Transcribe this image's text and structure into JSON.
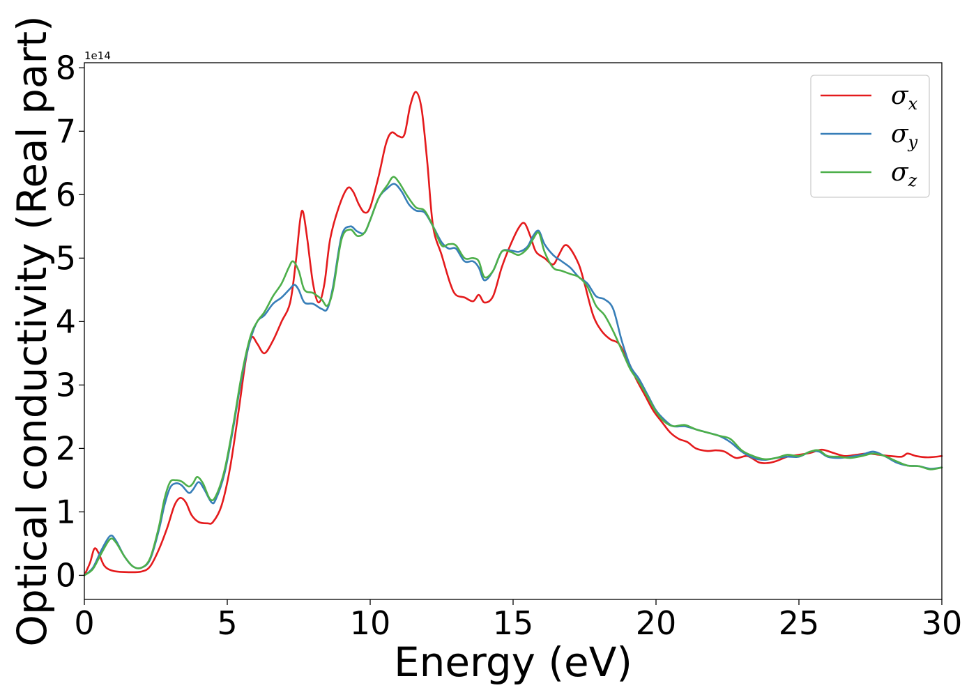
{
  "chart_data": {
    "type": "line",
    "xlabel": "Energy (eV)",
    "ylabel": "Optical conductivity (Real part)",
    "y_offset_label": "1e14",
    "xlim": [
      0,
      30
    ],
    "ylim": [
      -0.38,
      8.08
    ],
    "x_ticks": [
      0,
      5,
      10,
      15,
      20,
      25,
      30
    ],
    "x_tick_labels": [
      "0",
      "5",
      "10",
      "15",
      "20",
      "25",
      "30"
    ],
    "y_ticks": [
      0,
      1,
      2,
      3,
      4,
      5,
      6,
      7,
      8
    ],
    "y_tick_labels": [
      "0",
      "1",
      "2",
      "3",
      "4",
      "5",
      "6",
      "7",
      "8"
    ],
    "grid": false,
    "legend_position": "top-right",
    "series": [
      {
        "name": "σx",
        "symbol": "σ",
        "subscript": "x",
        "color": "#e41a1c",
        "points": [
          [
            0,
            0
          ],
          [
            0.2,
            0.2
          ],
          [
            0.35,
            0.42
          ],
          [
            0.5,
            0.35
          ],
          [
            0.7,
            0.15
          ],
          [
            1.0,
            0.07
          ],
          [
            1.5,
            0.05
          ],
          [
            2.0,
            0.06
          ],
          [
            2.3,
            0.14
          ],
          [
            2.6,
            0.4
          ],
          [
            2.9,
            0.75
          ],
          [
            3.15,
            1.1
          ],
          [
            3.35,
            1.22
          ],
          [
            3.55,
            1.15
          ],
          [
            3.75,
            0.95
          ],
          [
            4.0,
            0.84
          ],
          [
            4.3,
            0.82
          ],
          [
            4.5,
            0.84
          ],
          [
            4.8,
            1.1
          ],
          [
            5.1,
            1.7
          ],
          [
            5.4,
            2.6
          ],
          [
            5.65,
            3.4
          ],
          [
            5.85,
            3.75
          ],
          [
            6.05,
            3.65
          ],
          [
            6.3,
            3.5
          ],
          [
            6.6,
            3.7
          ],
          [
            6.9,
            4.0
          ],
          [
            7.2,
            4.3
          ],
          [
            7.4,
            4.95
          ],
          [
            7.55,
            5.6
          ],
          [
            7.65,
            5.73
          ],
          [
            7.8,
            5.3
          ],
          [
            8.0,
            4.6
          ],
          [
            8.2,
            4.3
          ],
          [
            8.4,
            4.6
          ],
          [
            8.6,
            5.3
          ],
          [
            8.9,
            5.8
          ],
          [
            9.2,
            6.1
          ],
          [
            9.4,
            6.05
          ],
          [
            9.6,
            5.85
          ],
          [
            9.8,
            5.72
          ],
          [
            10.0,
            5.8
          ],
          [
            10.3,
            6.3
          ],
          [
            10.55,
            6.8
          ],
          [
            10.75,
            6.98
          ],
          [
            11.0,
            6.92
          ],
          [
            11.2,
            6.95
          ],
          [
            11.4,
            7.4
          ],
          [
            11.6,
            7.62
          ],
          [
            11.8,
            7.35
          ],
          [
            12.0,
            6.5
          ],
          [
            12.2,
            5.5
          ],
          [
            12.5,
            5.05
          ],
          [
            12.8,
            4.6
          ],
          [
            13.0,
            4.42
          ],
          [
            13.3,
            4.38
          ],
          [
            13.6,
            4.32
          ],
          [
            13.8,
            4.42
          ],
          [
            14.0,
            4.3
          ],
          [
            14.3,
            4.4
          ],
          [
            14.6,
            4.85
          ],
          [
            14.9,
            5.2
          ],
          [
            15.2,
            5.48
          ],
          [
            15.4,
            5.55
          ],
          [
            15.6,
            5.35
          ],
          [
            15.8,
            5.1
          ],
          [
            16.1,
            5.0
          ],
          [
            16.4,
            4.9
          ],
          [
            16.6,
            5.05
          ],
          [
            16.8,
            5.2
          ],
          [
            17.0,
            5.15
          ],
          [
            17.3,
            4.9
          ],
          [
            17.5,
            4.6
          ],
          [
            17.8,
            4.1
          ],
          [
            18.1,
            3.85
          ],
          [
            18.4,
            3.72
          ],
          [
            18.7,
            3.65
          ],
          [
            19.0,
            3.4
          ],
          [
            19.3,
            3.1
          ],
          [
            19.6,
            2.85
          ],
          [
            19.9,
            2.6
          ],
          [
            20.2,
            2.42
          ],
          [
            20.5,
            2.25
          ],
          [
            20.8,
            2.15
          ],
          [
            21.1,
            2.1
          ],
          [
            21.4,
            2.0
          ],
          [
            21.8,
            1.96
          ],
          [
            22.1,
            1.97
          ],
          [
            22.4,
            1.95
          ],
          [
            22.8,
            1.85
          ],
          [
            23.2,
            1.88
          ],
          [
            23.6,
            1.78
          ],
          [
            23.9,
            1.77
          ],
          [
            24.2,
            1.8
          ],
          [
            24.6,
            1.87
          ],
          [
            25.0,
            1.9
          ],
          [
            25.4,
            1.93
          ],
          [
            25.8,
            1.98
          ],
          [
            26.2,
            1.93
          ],
          [
            26.6,
            1.88
          ],
          [
            27.0,
            1.9
          ],
          [
            27.4,
            1.92
          ],
          [
            27.8,
            1.9
          ],
          [
            28.2,
            1.88
          ],
          [
            28.6,
            1.87
          ],
          [
            28.8,
            1.92
          ],
          [
            29.1,
            1.88
          ],
          [
            29.5,
            1.86
          ],
          [
            30.0,
            1.88
          ]
        ]
      },
      {
        "name": "σy",
        "symbol": "σ",
        "subscript": "y",
        "color": "#377eb8",
        "points": [
          [
            0,
            0
          ],
          [
            0.3,
            0.12
          ],
          [
            0.6,
            0.4
          ],
          [
            0.9,
            0.62
          ],
          [
            1.1,
            0.55
          ],
          [
            1.4,
            0.3
          ],
          [
            1.7,
            0.14
          ],
          [
            2.0,
            0.12
          ],
          [
            2.3,
            0.25
          ],
          [
            2.6,
            0.7
          ],
          [
            2.8,
            1.1
          ],
          [
            3.0,
            1.38
          ],
          [
            3.2,
            1.45
          ],
          [
            3.4,
            1.42
          ],
          [
            3.65,
            1.3
          ],
          [
            3.8,
            1.35
          ],
          [
            4.0,
            1.47
          ],
          [
            4.2,
            1.35
          ],
          [
            4.45,
            1.15
          ],
          [
            4.6,
            1.2
          ],
          [
            4.9,
            1.6
          ],
          [
            5.2,
            2.3
          ],
          [
            5.5,
            3.1
          ],
          [
            5.8,
            3.7
          ],
          [
            6.05,
            4.0
          ],
          [
            6.3,
            4.1
          ],
          [
            6.6,
            4.28
          ],
          [
            6.9,
            4.38
          ],
          [
            7.2,
            4.52
          ],
          [
            7.35,
            4.58
          ],
          [
            7.5,
            4.5
          ],
          [
            7.7,
            4.3
          ],
          [
            8.0,
            4.28
          ],
          [
            8.3,
            4.2
          ],
          [
            8.5,
            4.2
          ],
          [
            8.7,
            4.55
          ],
          [
            9.0,
            5.35
          ],
          [
            9.3,
            5.5
          ],
          [
            9.55,
            5.42
          ],
          [
            9.8,
            5.4
          ],
          [
            10.0,
            5.6
          ],
          [
            10.3,
            5.95
          ],
          [
            10.6,
            6.1
          ],
          [
            10.85,
            6.17
          ],
          [
            11.1,
            6.05
          ],
          [
            11.35,
            5.85
          ],
          [
            11.6,
            5.75
          ],
          [
            11.9,
            5.72
          ],
          [
            12.2,
            5.5
          ],
          [
            12.5,
            5.25
          ],
          [
            12.75,
            5.15
          ],
          [
            13.0,
            5.15
          ],
          [
            13.3,
            4.95
          ],
          [
            13.6,
            4.95
          ],
          [
            13.8,
            4.85
          ],
          [
            14.0,
            4.65
          ],
          [
            14.3,
            4.8
          ],
          [
            14.6,
            5.1
          ],
          [
            14.9,
            5.12
          ],
          [
            15.2,
            5.1
          ],
          [
            15.5,
            5.18
          ],
          [
            15.7,
            5.35
          ],
          [
            15.9,
            5.43
          ],
          [
            16.1,
            5.22
          ],
          [
            16.4,
            5.05
          ],
          [
            16.7,
            4.95
          ],
          [
            17.0,
            4.85
          ],
          [
            17.3,
            4.7
          ],
          [
            17.6,
            4.6
          ],
          [
            17.9,
            4.4
          ],
          [
            18.2,
            4.35
          ],
          [
            18.5,
            4.2
          ],
          [
            18.8,
            3.7
          ],
          [
            19.1,
            3.3
          ],
          [
            19.4,
            3.1
          ],
          [
            19.7,
            2.85
          ],
          [
            20.0,
            2.6
          ],
          [
            20.3,
            2.45
          ],
          [
            20.6,
            2.35
          ],
          [
            21.0,
            2.35
          ],
          [
            21.4,
            2.3
          ],
          [
            21.8,
            2.25
          ],
          [
            22.2,
            2.2
          ],
          [
            22.6,
            2.1
          ],
          [
            23.0,
            1.95
          ],
          [
            23.4,
            1.85
          ],
          [
            23.8,
            1.82
          ],
          [
            24.2,
            1.85
          ],
          [
            24.6,
            1.87
          ],
          [
            25.0,
            1.87
          ],
          [
            25.4,
            1.95
          ],
          [
            25.7,
            1.95
          ],
          [
            26.0,
            1.87
          ],
          [
            26.4,
            1.85
          ],
          [
            26.8,
            1.87
          ],
          [
            27.2,
            1.9
          ],
          [
            27.6,
            1.95
          ],
          [
            28.0,
            1.88
          ],
          [
            28.4,
            1.78
          ],
          [
            28.8,
            1.73
          ],
          [
            29.2,
            1.72
          ],
          [
            29.6,
            1.68
          ],
          [
            30.0,
            1.7
          ]
        ]
      },
      {
        "name": "σz",
        "symbol": "σ",
        "subscript": "z",
        "color": "#4daf4a",
        "points": [
          [
            0,
            0
          ],
          [
            0.3,
            0.1
          ],
          [
            0.6,
            0.35
          ],
          [
            0.9,
            0.57
          ],
          [
            1.1,
            0.52
          ],
          [
            1.4,
            0.3
          ],
          [
            1.7,
            0.14
          ],
          [
            2.0,
            0.12
          ],
          [
            2.3,
            0.27
          ],
          [
            2.6,
            0.75
          ],
          [
            2.8,
            1.2
          ],
          [
            3.0,
            1.47
          ],
          [
            3.2,
            1.5
          ],
          [
            3.4,
            1.48
          ],
          [
            3.65,
            1.4
          ],
          [
            3.8,
            1.45
          ],
          [
            3.95,
            1.55
          ],
          [
            4.15,
            1.45
          ],
          [
            4.4,
            1.2
          ],
          [
            4.6,
            1.25
          ],
          [
            4.9,
            1.65
          ],
          [
            5.2,
            2.35
          ],
          [
            5.5,
            3.15
          ],
          [
            5.8,
            3.75
          ],
          [
            6.05,
            4.0
          ],
          [
            6.3,
            4.15
          ],
          [
            6.6,
            4.4
          ],
          [
            6.9,
            4.6
          ],
          [
            7.15,
            4.85
          ],
          [
            7.3,
            4.95
          ],
          [
            7.5,
            4.8
          ],
          [
            7.7,
            4.5
          ],
          [
            8.0,
            4.45
          ],
          [
            8.3,
            4.35
          ],
          [
            8.5,
            4.25
          ],
          [
            8.7,
            4.5
          ],
          [
            9.0,
            5.3
          ],
          [
            9.3,
            5.45
          ],
          [
            9.55,
            5.35
          ],
          [
            9.8,
            5.4
          ],
          [
            10.0,
            5.6
          ],
          [
            10.3,
            5.95
          ],
          [
            10.6,
            6.15
          ],
          [
            10.8,
            6.28
          ],
          [
            11.0,
            6.2
          ],
          [
            11.3,
            5.98
          ],
          [
            11.6,
            5.8
          ],
          [
            11.9,
            5.75
          ],
          [
            12.2,
            5.5
          ],
          [
            12.5,
            5.2
          ],
          [
            12.75,
            5.22
          ],
          [
            13.0,
            5.2
          ],
          [
            13.3,
            5.0
          ],
          [
            13.6,
            5.0
          ],
          [
            13.8,
            4.95
          ],
          [
            14.0,
            4.7
          ],
          [
            14.3,
            4.8
          ],
          [
            14.6,
            5.1
          ],
          [
            14.9,
            5.1
          ],
          [
            15.2,
            5.05
          ],
          [
            15.5,
            5.15
          ],
          [
            15.7,
            5.3
          ],
          [
            15.9,
            5.4
          ],
          [
            16.1,
            5.1
          ],
          [
            16.4,
            4.85
          ],
          [
            16.7,
            4.8
          ],
          [
            17.0,
            4.75
          ],
          [
            17.3,
            4.7
          ],
          [
            17.6,
            4.55
          ],
          [
            17.9,
            4.25
          ],
          [
            18.2,
            4.1
          ],
          [
            18.5,
            3.85
          ],
          [
            18.8,
            3.55
          ],
          [
            19.1,
            3.25
          ],
          [
            19.4,
            3.05
          ],
          [
            19.7,
            2.82
          ],
          [
            20.0,
            2.58
          ],
          [
            20.3,
            2.42
          ],
          [
            20.6,
            2.35
          ],
          [
            21.0,
            2.37
          ],
          [
            21.4,
            2.3
          ],
          [
            21.8,
            2.25
          ],
          [
            22.2,
            2.2
          ],
          [
            22.6,
            2.15
          ],
          [
            23.0,
            1.97
          ],
          [
            23.4,
            1.88
          ],
          [
            23.8,
            1.83
          ],
          [
            24.2,
            1.85
          ],
          [
            24.6,
            1.9
          ],
          [
            25.0,
            1.88
          ],
          [
            25.4,
            1.95
          ],
          [
            25.7,
            1.97
          ],
          [
            26.0,
            1.88
          ],
          [
            26.4,
            1.87
          ],
          [
            26.8,
            1.85
          ],
          [
            27.2,
            1.88
          ],
          [
            27.6,
            1.92
          ],
          [
            28.0,
            1.88
          ],
          [
            28.4,
            1.8
          ],
          [
            28.8,
            1.73
          ],
          [
            29.2,
            1.72
          ],
          [
            29.6,
            1.67
          ],
          [
            30.0,
            1.7
          ]
        ]
      }
    ]
  }
}
